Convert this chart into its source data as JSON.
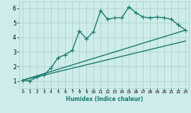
{
  "xlabel": "Humidex (Indice chaleur)",
  "bg_color": "#ceecea",
  "grid_color": "#aed4d0",
  "line_color": "#1a7a6e",
  "xlim": [
    -0.5,
    23.5
  ],
  "ylim": [
    0.5,
    6.5
  ],
  "yticks": [
    1,
    2,
    3,
    4,
    5,
    6
  ],
  "xticks": [
    0,
    1,
    2,
    3,
    4,
    5,
    6,
    7,
    8,
    9,
    10,
    11,
    12,
    13,
    14,
    15,
    16,
    17,
    18,
    19,
    20,
    21,
    22,
    23
  ],
  "series1_x": [
    0,
    1,
    2,
    3,
    4,
    5,
    6,
    7,
    8,
    9,
    10,
    11,
    12,
    13,
    14,
    15,
    16,
    17,
    18,
    19,
    20,
    21,
    22,
    23
  ],
  "series1_y": [
    1.05,
    1.0,
    1.25,
    1.4,
    1.9,
    2.6,
    2.8,
    3.1,
    4.45,
    3.9,
    4.4,
    5.85,
    5.25,
    5.35,
    5.35,
    6.1,
    5.7,
    5.4,
    5.35,
    5.4,
    5.35,
    5.25,
    4.85,
    4.5
  ],
  "line1_x": [
    0,
    23
  ],
  "line1_y": [
    1.05,
    4.5
  ],
  "line2_x": [
    0,
    23
  ],
  "line2_y": [
    1.05,
    3.75
  ],
  "line_width": 1.0,
  "marker": "+",
  "marker_size": 4
}
